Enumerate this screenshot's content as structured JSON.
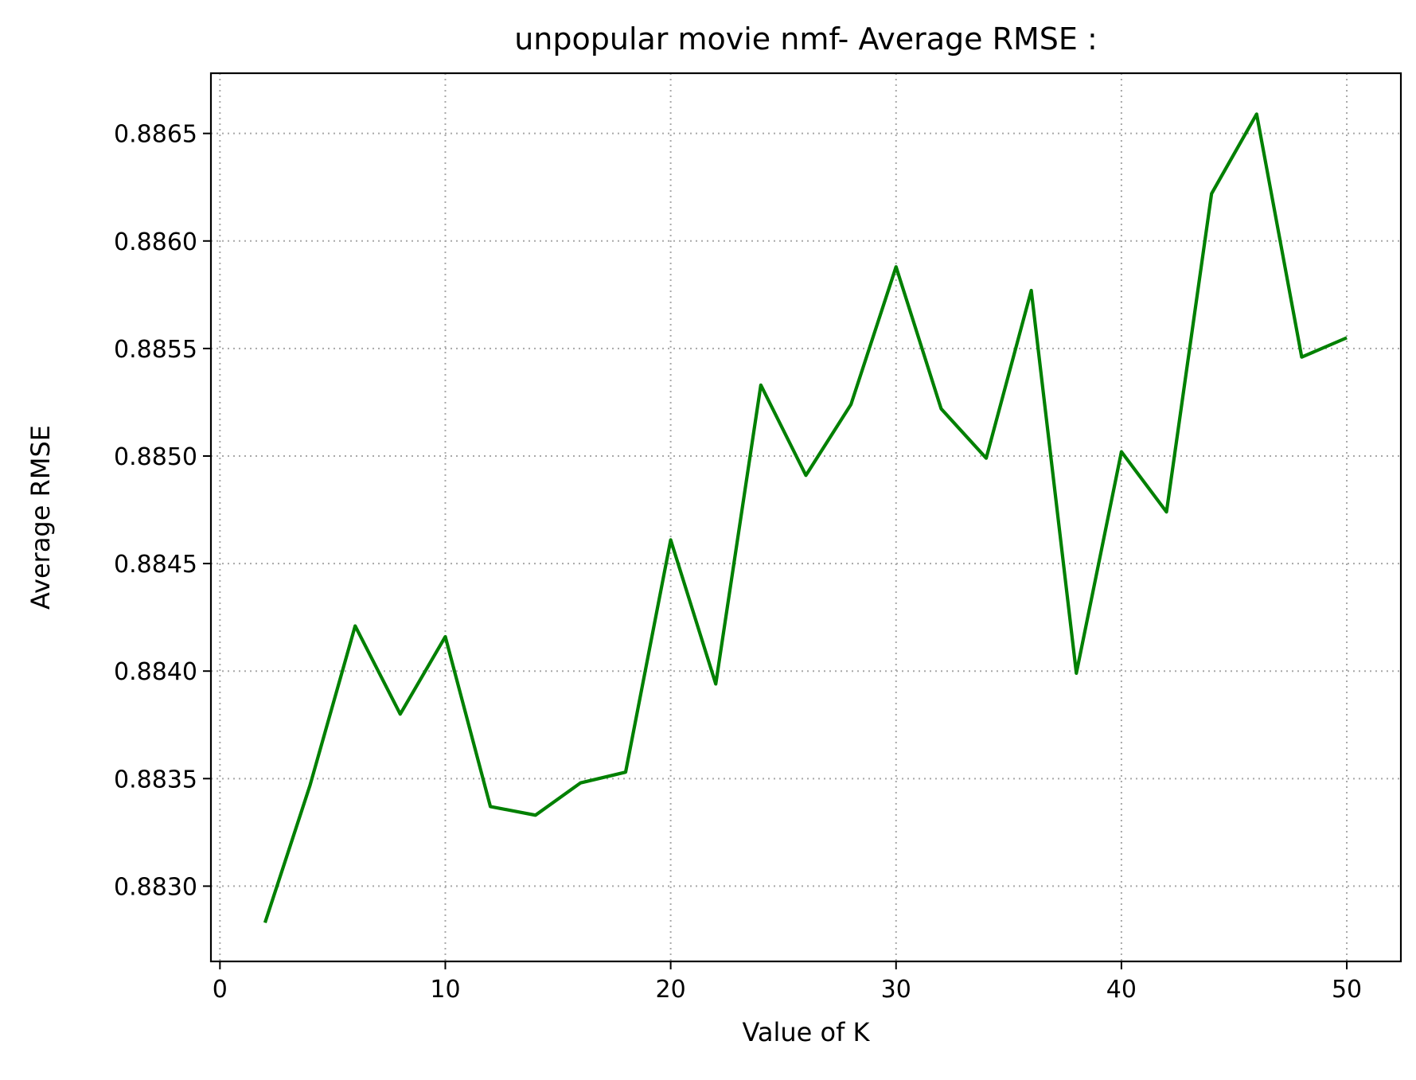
{
  "chart_data": {
    "type": "line",
    "title": "unpopular movie nmf- Average RMSE :",
    "xlabel": "Value of K",
    "ylabel": "Average RMSE",
    "xlim": [
      -0.4,
      52.4
    ],
    "ylim": [
      0.88265,
      0.88678
    ],
    "xticks": [
      0,
      10,
      20,
      30,
      40,
      50
    ],
    "xtick_labels": [
      "0",
      "10",
      "20",
      "30",
      "40",
      "50"
    ],
    "yticks": [
      0.883,
      0.8835,
      0.884,
      0.8845,
      0.885,
      0.8855,
      0.886,
      0.8865
    ],
    "ytick_labels": [
      "0.8830",
      "0.8835",
      "0.8840",
      "0.8845",
      "0.8850",
      "0.8855",
      "0.8860",
      "0.8865"
    ],
    "grid": true,
    "series": [
      {
        "color": "#008000",
        "x": [
          2,
          4,
          6,
          8,
          10,
          12,
          14,
          16,
          18,
          20,
          22,
          24,
          26,
          28,
          30,
          32,
          34,
          36,
          38,
          40,
          42,
          44,
          46,
          48,
          50
        ],
        "y": [
          0.88283,
          0.88347,
          0.88421,
          0.8838,
          0.88416,
          0.88337,
          0.88333,
          0.88348,
          0.88353,
          0.88461,
          0.88394,
          0.88533,
          0.88491,
          0.88524,
          0.88588,
          0.88522,
          0.88499,
          0.88577,
          0.88399,
          0.88502,
          0.88474,
          0.88622,
          0.88659,
          0.88546,
          0.88555
        ]
      }
    ]
  }
}
